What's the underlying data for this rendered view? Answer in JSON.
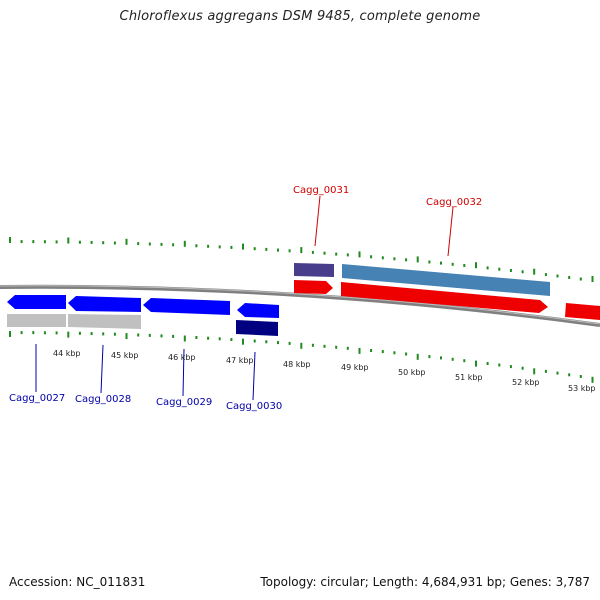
{
  "title": "Chloroflexus aggregans DSM 9485, complete genome",
  "footer": {
    "accession": "Accession: NC_011831",
    "summary": "Topology: circular; Length: 4,684,931 bp; Genes: 3,787"
  },
  "colors": {
    "backbone": "#808080",
    "tick": "#1f8a1f",
    "forward_cds": "#ee0000",
    "forward_gene": "#4682b4",
    "forward_gene_dark": "#483d8b",
    "reverse_cds": "#0000ff",
    "reverse_gene": "#c0c0c0",
    "reverse_gene_dark": "#000080",
    "forward_label": "#cc0000",
    "reverse_label": "#0000aa"
  },
  "scale_labels": [
    "44 kbp",
    "45 kbp",
    "46 kbp",
    "47 kbp",
    "48 kbp",
    "49 kbp",
    "50 kbp",
    "51 kbp",
    "52 kbp",
    "53 kbp"
  ],
  "genes": [
    {
      "id": "Cagg_0027",
      "strand": "reverse"
    },
    {
      "id": "Cagg_0028",
      "strand": "reverse"
    },
    {
      "id": "Cagg_0029",
      "strand": "reverse"
    },
    {
      "id": "Cagg_0030",
      "strand": "reverse"
    },
    {
      "id": "Cagg_0031",
      "strand": "forward"
    },
    {
      "id": "Cagg_0032",
      "strand": "forward"
    }
  ]
}
